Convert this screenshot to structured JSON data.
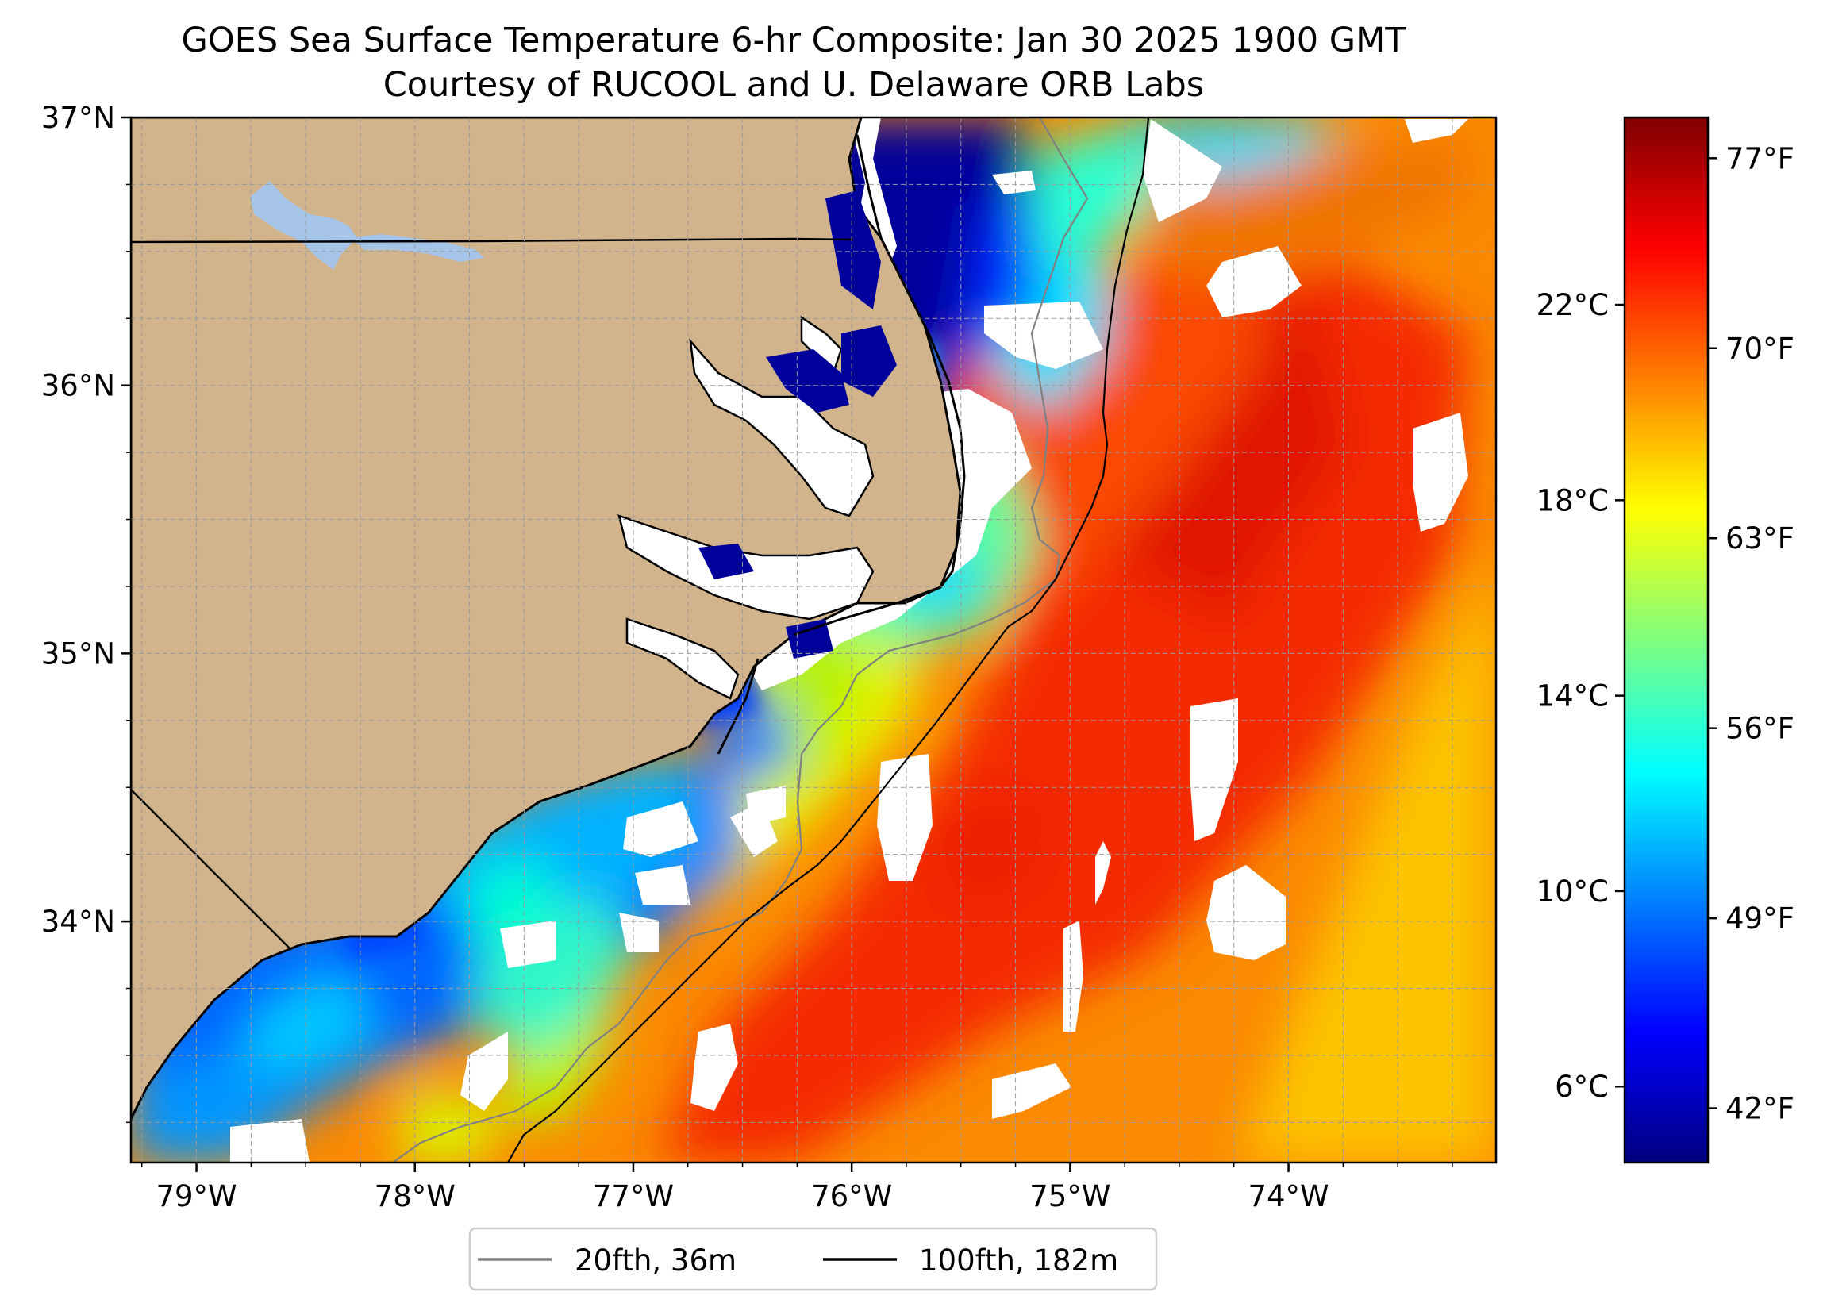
{
  "title": "GOES Sea Surface Temperature 6-hr Composite: Jan 30 2025 1900 GMT",
  "subtitle": "Courtesy of RUCOOL and U. Delaware ORB Labs",
  "chart_data": {
    "type": "heatmap",
    "grid": true,
    "extent": {
      "lon": [
        -79.3,
        -73.05
      ],
      "lat": [
        33.1,
        37.0
      ]
    },
    "lat_ticks": [
      {
        "value": 37,
        "label": "37°N"
      },
      {
        "value": 36,
        "label": "36°N"
      },
      {
        "value": 35,
        "label": "35°N"
      },
      {
        "value": 34,
        "label": "34°N"
      }
    ],
    "lon_ticks": [
      {
        "value": -79,
        "label": "79°W"
      },
      {
        "value": -78,
        "label": "78°W"
      },
      {
        "value": -77,
        "label": "77°W"
      },
      {
        "value": -76,
        "label": "76°W"
      },
      {
        "value": -75,
        "label": "75°W"
      },
      {
        "value": -74,
        "label": "74°W"
      }
    ],
    "colorbar": {
      "range_f": [
        40,
        78.5
      ],
      "fahrenheit_ticks": [
        {
          "value": 42,
          "label": "42°F"
        },
        {
          "value": 49,
          "label": "49°F"
        },
        {
          "value": 56,
          "label": "56°F"
        },
        {
          "value": 63,
          "label": "63°F"
        },
        {
          "value": 70,
          "label": "70°F"
        },
        {
          "value": 77,
          "label": "77°F"
        }
      ],
      "celsius_ticks": [
        {
          "value": 6,
          "label": "6°C"
        },
        {
          "value": 10,
          "label": "10°C"
        },
        {
          "value": 14,
          "label": "14°C"
        },
        {
          "value": 18,
          "label": "18°C"
        },
        {
          "value": 22,
          "label": "22°C"
        }
      ],
      "colormap": [
        "#00007f",
        "#0000ff",
        "#007fff",
        "#00ffff",
        "#7fff7f",
        "#ffff00",
        "#ff7f00",
        "#ff0000",
        "#7f0000"
      ]
    },
    "legend": {
      "placement": "bottom",
      "entries": [
        {
          "label": "20fth, 36m",
          "color": "#808080"
        },
        {
          "label": "100fth, 182m",
          "color": "#000000"
        }
      ]
    },
    "colors": {
      "land": "#d2b48c",
      "lake": "#a6c4e8",
      "no_data": "#ffffff"
    }
  }
}
